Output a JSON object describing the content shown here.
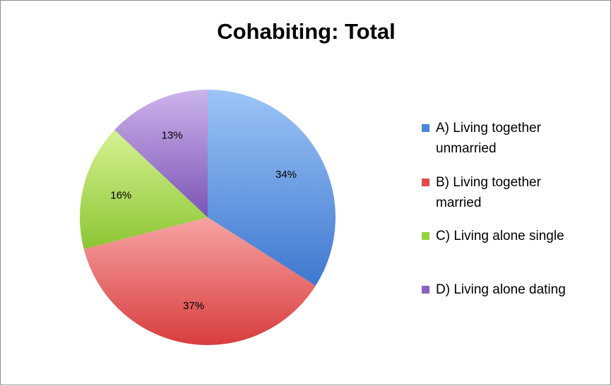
{
  "chart_data": {
    "type": "pie",
    "title": "Cohabiting: Total",
    "categories": [
      "A) Living together unmarried",
      "B) Living together married",
      "C) Living alone single",
      "D) Living alone dating"
    ],
    "values": [
      34,
      37,
      16,
      13
    ],
    "data_labels": [
      "34%",
      "37%",
      "16%",
      "13%"
    ],
    "colors": [
      "#4a86d8",
      "#e04b4b",
      "#9ad13e",
      "#8b62c2"
    ],
    "legend_position": "right"
  },
  "legend": {
    "items": [
      {
        "line1": "A) Living together",
        "line2": "unmarried"
      },
      {
        "line1": "B) Living together",
        "line2": "married"
      },
      {
        "line1": "C) Living alone single",
        "line2": ""
      },
      {
        "line1": "D) Living alone dating",
        "line2": ""
      }
    ]
  }
}
